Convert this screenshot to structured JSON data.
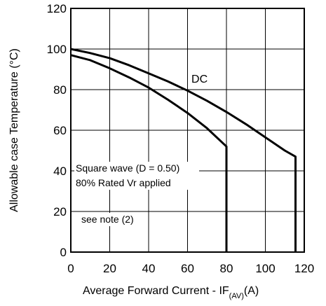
{
  "chart_data": {
    "type": "line",
    "xlabel": "Average Forward Current - IF",
    "xlabel_sub": "(AV)",
    "xlabel_unit": "(A)",
    "ylabel": "Allowable case Temperature (°C)",
    "xlim": [
      0,
      120
    ],
    "ylim": [
      0,
      120
    ],
    "xticks": [
      0,
      20,
      40,
      60,
      80,
      100,
      120
    ],
    "yticks": [
      0,
      20,
      40,
      60,
      80,
      100,
      120
    ],
    "grid": true,
    "series": [
      {
        "name": "DC",
        "x": [
          0,
          10,
          20,
          30,
          40,
          50,
          60,
          70,
          80,
          90,
          100,
          110,
          115.5,
          115.5
        ],
        "y": [
          100,
          98,
          95.5,
          92,
          88,
          84,
          79.5,
          74.5,
          69,
          63,
          56.5,
          50,
          47,
          0
        ]
      },
      {
        "name": "",
        "x": [
          0,
          10,
          20,
          30,
          40,
          50,
          60,
          70,
          80,
          80
        ],
        "y": [
          97,
          94.5,
          90.5,
          86,
          81,
          75,
          68.5,
          61,
          52,
          0
        ]
      }
    ],
    "annotations": [
      "Square wave (D = 0.50)",
      "80% Rated Vr  applied",
      "see note (2)"
    ]
  }
}
